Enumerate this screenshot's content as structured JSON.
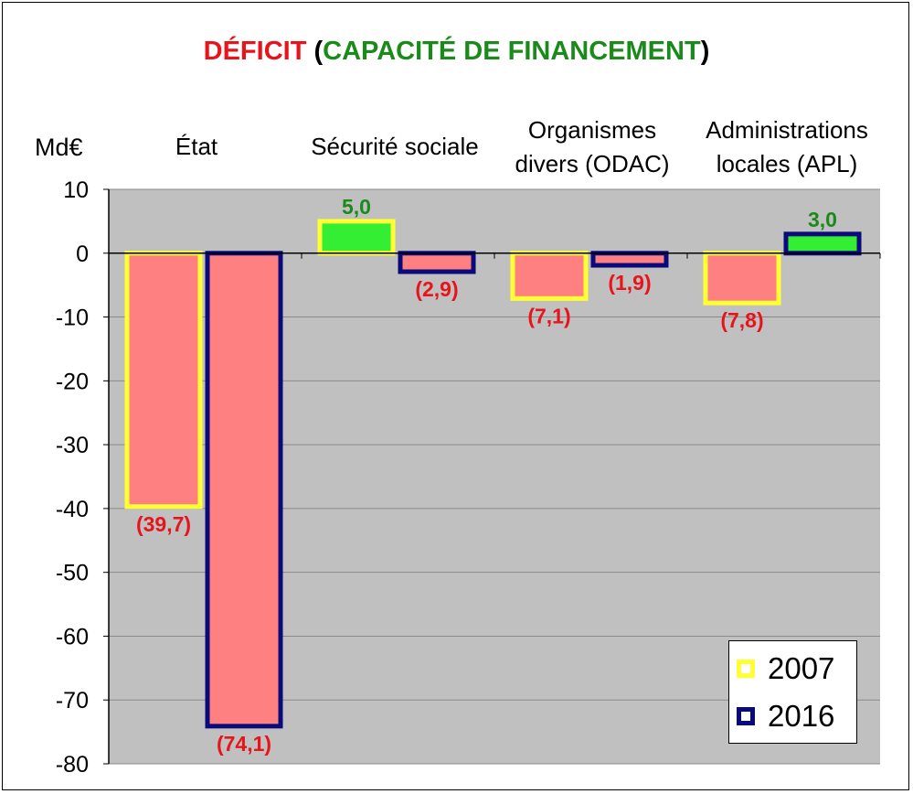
{
  "title": {
    "deficit": "DÉFICIT",
    "open_paren": "(",
    "capacity": "CAPACITÉ DE FINANCEMENT",
    "close_paren": ")",
    "colors": {
      "deficit": "#e8141b",
      "capacity": "#1a8a1a"
    }
  },
  "chart_data": {
    "type": "bar",
    "unit_label": "Md€",
    "categories": [
      [
        "État"
      ],
      [
        "Sécurité sociale"
      ],
      [
        "Organismes",
        "divers (ODAC)"
      ],
      [
        "Administrations",
        "locales (APL)"
      ]
    ],
    "series": [
      {
        "name": "2007",
        "values": [
          -39.7,
          5.0,
          -7.1,
          -7.8
        ],
        "border_color": "#ffff33"
      },
      {
        "name": "2016",
        "values": [
          -74.1,
          -2.9,
          -1.9,
          3.0
        ],
        "border_color": "#0a0a7a"
      }
    ],
    "data_labels": {
      "2007": [
        "(39,7)",
        "5,0",
        "(7,1)",
        "(7,8)"
      ],
      "2016": [
        "(74,1)",
        "(2,9)",
        "(1,9)",
        "3,0"
      ]
    },
    "ylim": [
      -80,
      10
    ],
    "yticks": [
      10,
      0,
      -10,
      -20,
      -30,
      -40,
      -50,
      -60,
      -70,
      -80
    ],
    "grid": true,
    "legend_position": "bottom-right",
    "colors": {
      "plot_background": "#c0c0c0",
      "negative_fill": "#ff8080",
      "positive_fill": "#33ee33",
      "negative_label": "#e8141b",
      "positive_label": "#1a8a1a"
    }
  }
}
